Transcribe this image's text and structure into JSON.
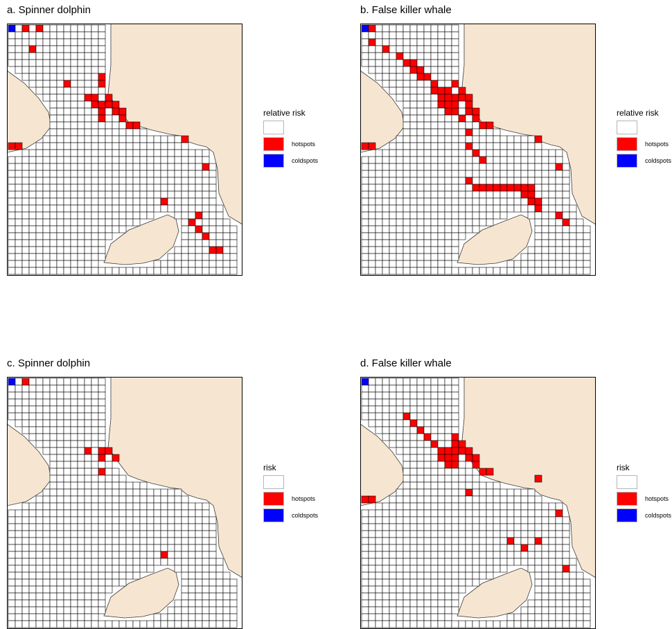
{
  "colors": {
    "land": "#f6e6d1",
    "background": "#ffffff",
    "hotspot": "#ff0000",
    "coldspot": "#0000ff",
    "grid": "#000000"
  },
  "panels": [
    {
      "title": "a. Spinner dolphin",
      "legend": {
        "title": "relative risk",
        "items": [
          {
            "label": "",
            "color": "#ffffff"
          },
          {
            "label": "hotspots",
            "color": "#ff0000"
          },
          {
            "label": "coldspots",
            "color": "#0000ff"
          }
        ]
      },
      "hotspots": [
        [
          2,
          0
        ],
        [
          4,
          0
        ],
        [
          3,
          3
        ],
        [
          8,
          8
        ],
        [
          13,
          7
        ],
        [
          13,
          8
        ],
        [
          11,
          10
        ],
        [
          12,
          10
        ],
        [
          14,
          10
        ],
        [
          12,
          11
        ],
        [
          13,
          11
        ],
        [
          14,
          11
        ],
        [
          15,
          11
        ],
        [
          13,
          12
        ],
        [
          15,
          12
        ],
        [
          16,
          12
        ],
        [
          13,
          13
        ],
        [
          16,
          13
        ],
        [
          17,
          14
        ],
        [
          18,
          14
        ],
        [
          0,
          17
        ],
        [
          1,
          17
        ],
        [
          25,
          16
        ],
        [
          28,
          20
        ],
        [
          22,
          25
        ],
        [
          27,
          27
        ],
        [
          26,
          28
        ],
        [
          27,
          29
        ],
        [
          28,
          30
        ],
        [
          29,
          32
        ],
        [
          30,
          32
        ]
      ],
      "coldspots": [
        [
          0,
          0
        ]
      ]
    },
    {
      "title": "b. False killer whale",
      "legend": {
        "title": "relative risk",
        "items": [
          {
            "label": "",
            "color": "#ffffff"
          },
          {
            "label": "hotspots",
            "color": "#ff0000"
          },
          {
            "label": "coldspots",
            "color": "#0000ff"
          }
        ]
      },
      "hotspots": [
        [
          1,
          0
        ],
        [
          1,
          2
        ],
        [
          3,
          3
        ],
        [
          5,
          4
        ],
        [
          6,
          5
        ],
        [
          7,
          5
        ],
        [
          7,
          6
        ],
        [
          8,
          6
        ],
        [
          8,
          7
        ],
        [
          9,
          7
        ],
        [
          10,
          8
        ],
        [
          13,
          8
        ],
        [
          10,
          9
        ],
        [
          11,
          9
        ],
        [
          12,
          9
        ],
        [
          14,
          9
        ],
        [
          11,
          10
        ],
        [
          12,
          10
        ],
        [
          13,
          10
        ],
        [
          14,
          10
        ],
        [
          15,
          10
        ],
        [
          11,
          11
        ],
        [
          12,
          11
        ],
        [
          13,
          11
        ],
        [
          15,
          11
        ],
        [
          12,
          12
        ],
        [
          13,
          12
        ],
        [
          15,
          12
        ],
        [
          16,
          12
        ],
        [
          14,
          13
        ],
        [
          16,
          13
        ],
        [
          17,
          14
        ],
        [
          18,
          14
        ],
        [
          15,
          15
        ],
        [
          25,
          16
        ],
        [
          15,
          17
        ],
        [
          16,
          18
        ],
        [
          17,
          19
        ],
        [
          0,
          17
        ],
        [
          1,
          17
        ],
        [
          28,
          20
        ],
        [
          15,
          22
        ],
        [
          16,
          23
        ],
        [
          17,
          23
        ],
        [
          18,
          23
        ],
        [
          19,
          23
        ],
        [
          20,
          23
        ],
        [
          21,
          23
        ],
        [
          22,
          23
        ],
        [
          23,
          23
        ],
        [
          24,
          23
        ],
        [
          23,
          24
        ],
        [
          24,
          24
        ],
        [
          24,
          25
        ],
        [
          25,
          25
        ],
        [
          25,
          26
        ],
        [
          28,
          27
        ],
        [
          29,
          28
        ]
      ],
      "coldspots": [
        [
          0,
          0
        ]
      ]
    },
    {
      "title": "c. Spinner dolphin",
      "legend": {
        "title": "risk",
        "items": [
          {
            "label": "",
            "color": "#ffffff"
          },
          {
            "label": "hotspots",
            "color": "#ff0000"
          },
          {
            "label": "coldspots",
            "color": "#0000ff"
          }
        ]
      },
      "hotspots": [
        [
          2,
          0
        ],
        [
          11,
          10
        ],
        [
          13,
          10
        ],
        [
          14,
          10
        ],
        [
          13,
          11
        ],
        [
          15,
          11
        ],
        [
          13,
          13
        ],
        [
          22,
          25
        ]
      ],
      "coldspots": [
        [
          0,
          0
        ]
      ]
    },
    {
      "title": "d. False killer whale",
      "legend": {
        "title": "risk",
        "items": [
          {
            "label": "",
            "color": "#ffffff"
          },
          {
            "label": "hotspots",
            "color": "#ff0000"
          },
          {
            "label": "coldspots",
            "color": "#0000ff"
          }
        ]
      },
      "hotspots": [
        [
          6,
          5
        ],
        [
          7,
          6
        ],
        [
          8,
          7
        ],
        [
          9,
          8
        ],
        [
          13,
          8
        ],
        [
          10,
          9
        ],
        [
          13,
          9
        ],
        [
          14,
          9
        ],
        [
          11,
          10
        ],
        [
          12,
          10
        ],
        [
          13,
          10
        ],
        [
          14,
          10
        ],
        [
          15,
          10
        ],
        [
          11,
          11
        ],
        [
          12,
          11
        ],
        [
          13,
          11
        ],
        [
          15,
          11
        ],
        [
          16,
          11
        ],
        [
          12,
          12
        ],
        [
          13,
          12
        ],
        [
          16,
          12
        ],
        [
          17,
          13
        ],
        [
          18,
          13
        ],
        [
          25,
          14
        ],
        [
          15,
          16
        ],
        [
          0,
          17
        ],
        [
          1,
          17
        ],
        [
          28,
          19
        ],
        [
          21,
          23
        ],
        [
          23,
          24
        ],
        [
          25,
          23
        ],
        [
          29,
          27
        ]
      ],
      "coldspots": [
        [
          0,
          0
        ]
      ]
    }
  ]
}
